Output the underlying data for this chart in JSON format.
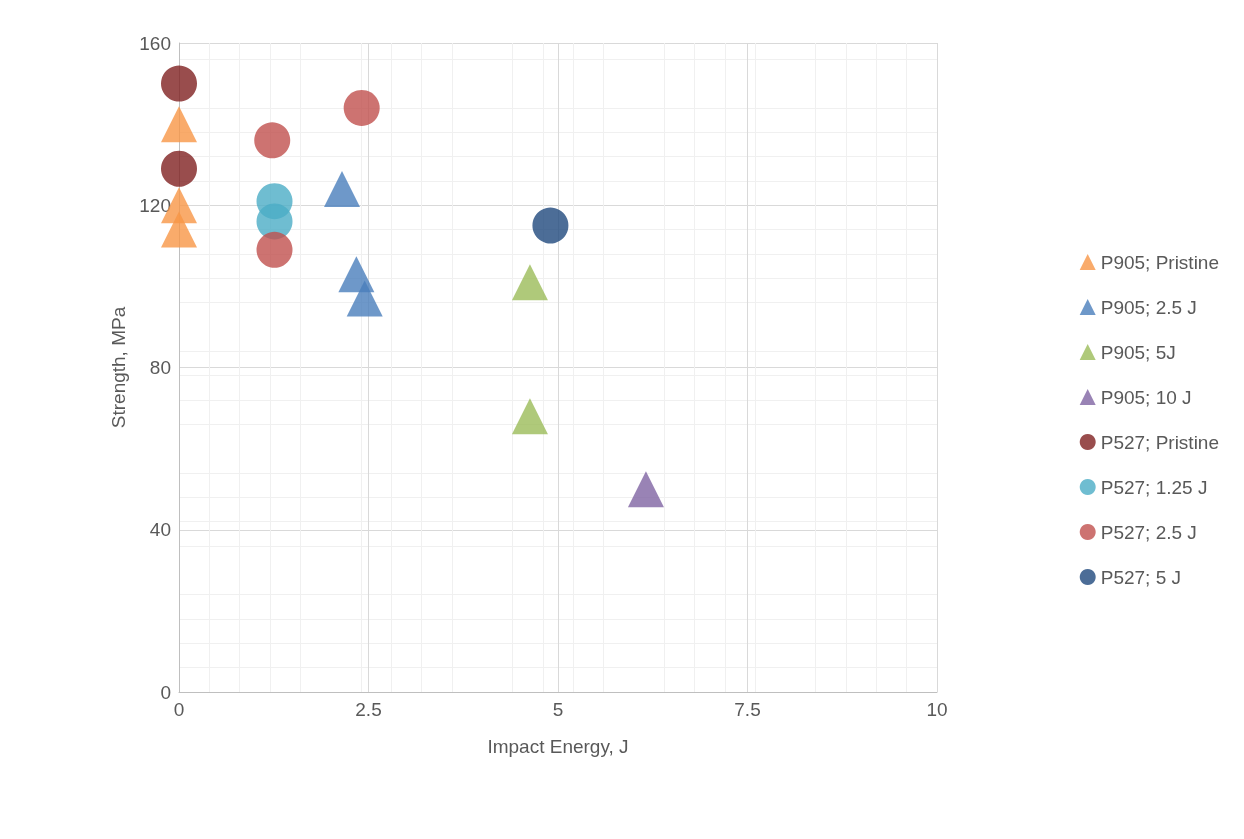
{
  "chart_data": {
    "type": "scatter",
    "xlabel": "Impact Energy, J",
    "ylabel": "Strength, MPa",
    "xlim": [
      0,
      10
    ],
    "xticks": [
      0,
      2.5,
      5,
      7.5,
      10
    ],
    "ylim": [
      0,
      160
    ],
    "yticks": [
      0,
      40,
      80,
      120,
      160
    ],
    "grid": true,
    "legend": "right",
    "series": [
      {
        "name": "P905; Pristine",
        "color": "#f79646",
        "marker": "triangle",
        "x": [
          0,
          0,
          0
        ],
        "values": [
          140,
          120,
          114
        ]
      },
      {
        "name": "P905; 2.5 J",
        "color": "#4a7ebb",
        "marker": "triangle",
        "x": [
          2.15,
          2.34,
          2.45
        ],
        "values": [
          124,
          103,
          97
        ]
      },
      {
        "name": "P905; 5J",
        "color": "#9bbb59",
        "marker": "triangle",
        "x": [
          4.63,
          4.63
        ],
        "values": [
          101,
          68
        ]
      },
      {
        "name": "P905; 10 J",
        "color": "#8064a2",
        "marker": "triangle",
        "x": [
          6.16
        ],
        "values": [
          50
        ]
      },
      {
        "name": "P527; Pristine",
        "color": "#7f2020",
        "marker": "circle",
        "x": [
          0,
          0
        ],
        "values": [
          150,
          129
        ]
      },
      {
        "name": "P527; 1.25 J",
        "color": "#4bacc6",
        "marker": "circle",
        "x": [
          1.26,
          1.26
        ],
        "values": [
          121,
          116
        ]
      },
      {
        "name": "P527; 2.5 J",
        "color": "#c0504d",
        "marker": "circle",
        "x": [
          1.23,
          2.41,
          1.26
        ],
        "values": [
          136,
          144,
          109
        ]
      },
      {
        "name": "P527; 5 J",
        "color": "#1f497d",
        "marker": "circle",
        "x": [
          4.9
        ],
        "values": [
          115
        ]
      }
    ]
  }
}
